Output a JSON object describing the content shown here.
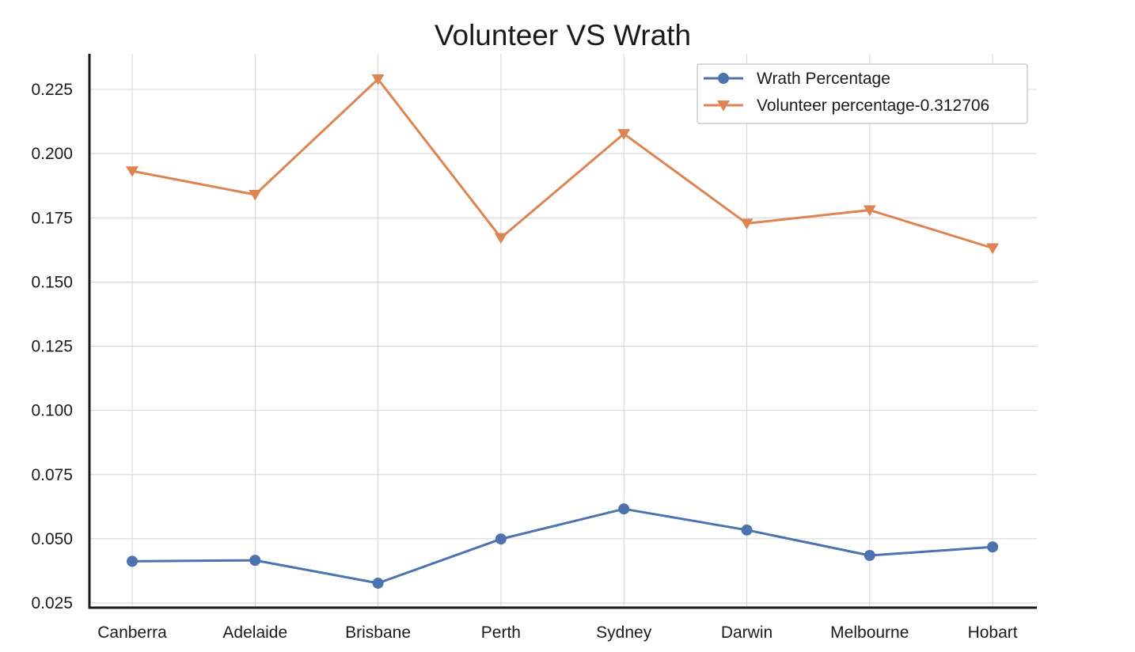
{
  "chart_data": {
    "type": "line",
    "title": "Volunteer VS Wrath",
    "xlabel": "",
    "ylabel": "",
    "categories": [
      "Canberra",
      "Adelaide",
      "Brisbane",
      "Perth",
      "Sydney",
      "Darwin",
      "Melbourne",
      "Hobart"
    ],
    "ylim": [
      0.025,
      0.238
    ],
    "yticks": [
      "0.025",
      "0.050",
      "0.075",
      "0.100",
      "0.125",
      "0.150",
      "0.175",
      "0.200",
      "0.225"
    ],
    "grid": true,
    "legend_position": "top-right",
    "series": [
      {
        "name": "Wrath Percentage",
        "color": "#4c72b0",
        "marker": "circle",
        "values": [
          0.0412,
          0.0416,
          0.0327,
          0.0499,
          0.0616,
          0.0534,
          0.0435,
          0.0468
        ]
      },
      {
        "name": "Volunteer percentage-0.312706",
        "color": "#dd8452",
        "marker": "triangle-down",
        "values": [
          0.1932,
          0.184,
          0.229,
          0.1672,
          0.2077,
          0.1728,
          0.178,
          0.1632
        ]
      }
    ]
  }
}
